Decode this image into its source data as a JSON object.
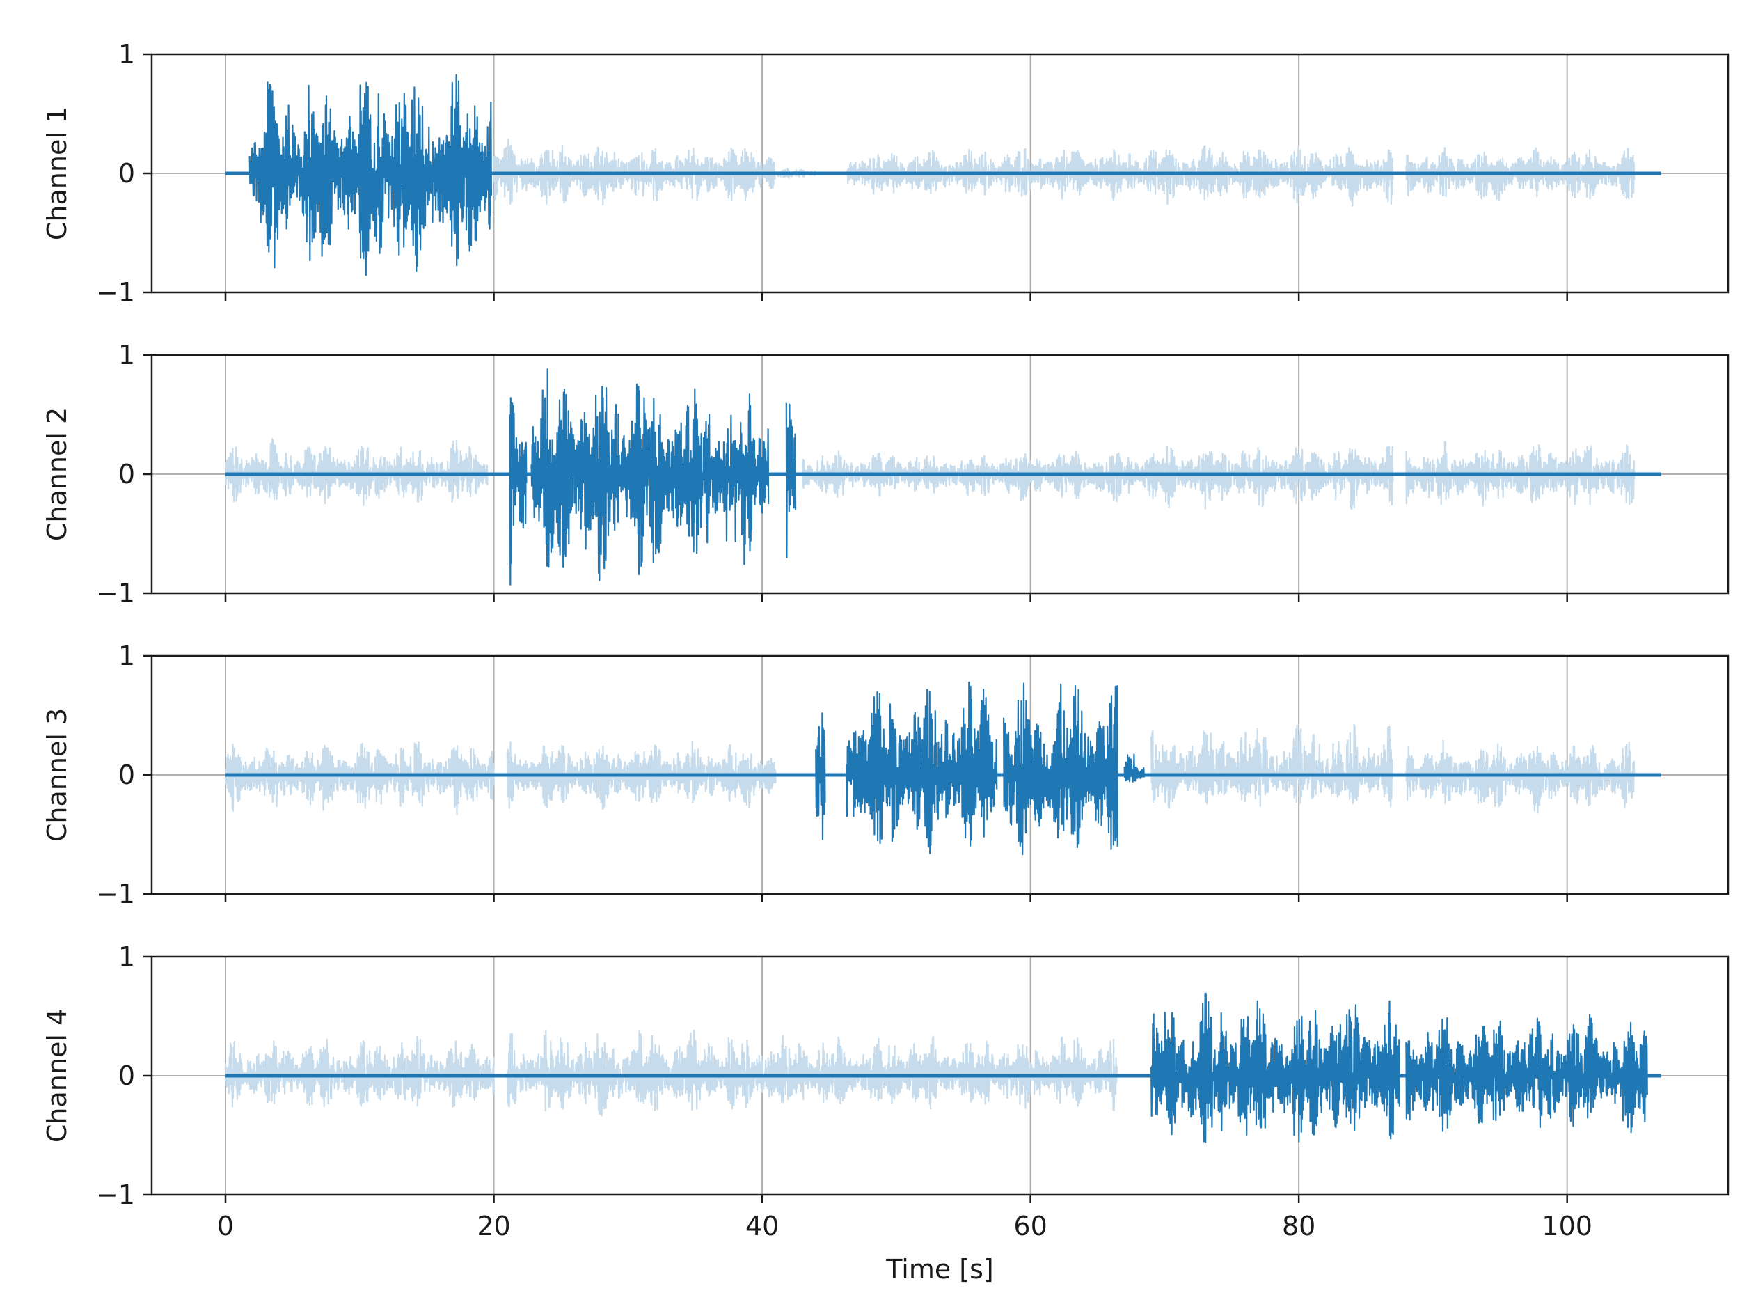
{
  "chart_data": [
    {
      "type": "line",
      "ylabel": "Channel 1",
      "xlabel": "",
      "xlim": [
        -5.5,
        112
      ],
      "ylim": [
        -1,
        1
      ],
      "grid": true,
      "yticks": [
        "1",
        "0",
        "−1"
      ],
      "xticks": [],
      "series": [
        {
          "role": "active",
          "color": "#1f77b4",
          "segments": [
            {
              "start": 1.8,
              "end": 2.6,
              "amp_max": 0.45,
              "amp_min": -0.42
            },
            {
              "start": 2.6,
              "end": 10.2,
              "amp_max": 0.9,
              "amp_min": -0.88
            },
            {
              "start": 10.2,
              "end": 13.6,
              "amp_max": 1.0,
              "amp_min": -1.0
            },
            {
              "start": 13.6,
              "end": 19.8,
              "amp_max": 0.92,
              "amp_min": -0.9
            }
          ]
        },
        {
          "role": "inactive",
          "color": "#c6dcec",
          "segments": [
            {
              "start": 20,
              "end": 29,
              "amp_max": 0.3,
              "amp_min": -0.3
            },
            {
              "start": 29,
              "end": 41,
              "amp_max": 0.25,
              "amp_min": -0.27
            },
            {
              "start": 41,
              "end": 44,
              "amp_max": 0.05,
              "amp_min": -0.05
            },
            {
              "start": 46.3,
              "end": 58,
              "amp_max": 0.22,
              "amp_min": -0.22
            },
            {
              "start": 58,
              "end": 70,
              "amp_max": 0.25,
              "amp_min": -0.25
            },
            {
              "start": 70,
              "end": 87,
              "amp_max": 0.25,
              "amp_min": -0.28
            },
            {
              "start": 88,
              "end": 105,
              "amp_max": 0.22,
              "amp_min": -0.25
            }
          ]
        }
      ]
    },
    {
      "type": "line",
      "ylabel": "Channel 2",
      "xlabel": "",
      "xlim": [
        -5.5,
        112
      ],
      "ylim": [
        -1,
        1
      ],
      "grid": true,
      "yticks": [
        "1",
        "0",
        "−1"
      ],
      "xticks": [],
      "series": [
        {
          "role": "active",
          "color": "#1f77b4",
          "segments": [
            {
              "start": 21.2,
              "end": 22.4,
              "amp_max": 0.7,
              "amp_min": -1.0
            },
            {
              "start": 22.8,
              "end": 31.5,
              "amp_max": 1.0,
              "amp_min": -0.95
            },
            {
              "start": 31.5,
              "end": 40.5,
              "amp_max": 0.82,
              "amp_min": -0.9
            },
            {
              "start": 41.8,
              "end": 42.5,
              "amp_max": 0.85,
              "amp_min": -0.9
            }
          ]
        },
        {
          "role": "inactive",
          "color": "#c6dcec",
          "segments": [
            {
              "start": 0,
              "end": 19.5,
              "amp_max": 0.3,
              "amp_min": -0.28
            },
            {
              "start": 43,
              "end": 58,
              "amp_max": 0.2,
              "amp_min": -0.22
            },
            {
              "start": 58,
              "end": 70,
              "amp_max": 0.22,
              "amp_min": -0.25
            },
            {
              "start": 70,
              "end": 87,
              "amp_max": 0.27,
              "amp_min": -0.3
            },
            {
              "start": 88,
              "end": 105,
              "amp_max": 0.28,
              "amp_min": -0.3
            }
          ]
        }
      ]
    },
    {
      "type": "line",
      "ylabel": "Channel 3",
      "xlabel": "",
      "xlim": [
        -5.5,
        112
      ],
      "ylim": [
        -1,
        1
      ],
      "grid": true,
      "yticks": [
        "1",
        "0",
        "−1"
      ],
      "xticks": [],
      "series": [
        {
          "role": "active",
          "color": "#1f77b4",
          "segments": [
            {
              "start": 44,
              "end": 44.7,
              "amp_max": 0.9,
              "amp_min": -0.75
            },
            {
              "start": 46.3,
              "end": 57.5,
              "amp_max": 0.85,
              "amp_min": -0.72
            },
            {
              "start": 58,
              "end": 66.5,
              "amp_max": 0.85,
              "amp_min": -0.78
            },
            {
              "start": 67,
              "end": 68.5,
              "amp_max": 0.35,
              "amp_min": -0.1
            }
          ]
        },
        {
          "role": "inactive",
          "color": "#c6dcec",
          "segments": [
            {
              "start": 0,
              "end": 20,
              "amp_max": 0.3,
              "amp_min": -0.35
            },
            {
              "start": 21,
              "end": 41,
              "amp_max": 0.3,
              "amp_min": -0.3
            },
            {
              "start": 69,
              "end": 87,
              "amp_max": 0.45,
              "amp_min": -0.3
            },
            {
              "start": 88,
              "end": 105,
              "amp_max": 0.3,
              "amp_min": -0.33
            }
          ]
        }
      ]
    },
    {
      "type": "line",
      "ylabel": "Channel 4",
      "xlabel": "Time [s]",
      "xlim": [
        -5.5,
        112
      ],
      "ylim": [
        -1,
        1
      ],
      "grid": true,
      "yticks": [
        "1",
        "0",
        "−1"
      ],
      "xticks": [
        "0",
        "20",
        "40",
        "60",
        "80",
        "100"
      ],
      "series": [
        {
          "role": "active",
          "color": "#1f77b4",
          "segments": [
            {
              "start": 69,
              "end": 70.5,
              "amp_max": 0.68,
              "amp_min": -0.58
            },
            {
              "start": 70.5,
              "end": 87.5,
              "amp_max": 0.72,
              "amp_min": -0.65
            },
            {
              "start": 88,
              "end": 106,
              "amp_max": 0.55,
              "amp_min": -0.55
            }
          ]
        },
        {
          "role": "inactive",
          "color": "#c6dcec",
          "segments": [
            {
              "start": 0,
              "end": 20,
              "amp_max": 0.35,
              "amp_min": -0.3
            },
            {
              "start": 21,
              "end": 41,
              "amp_max": 0.42,
              "amp_min": -0.35
            },
            {
              "start": 41,
              "end": 66.5,
              "amp_max": 0.37,
              "amp_min": -0.3
            }
          ]
        }
      ]
    }
  ]
}
